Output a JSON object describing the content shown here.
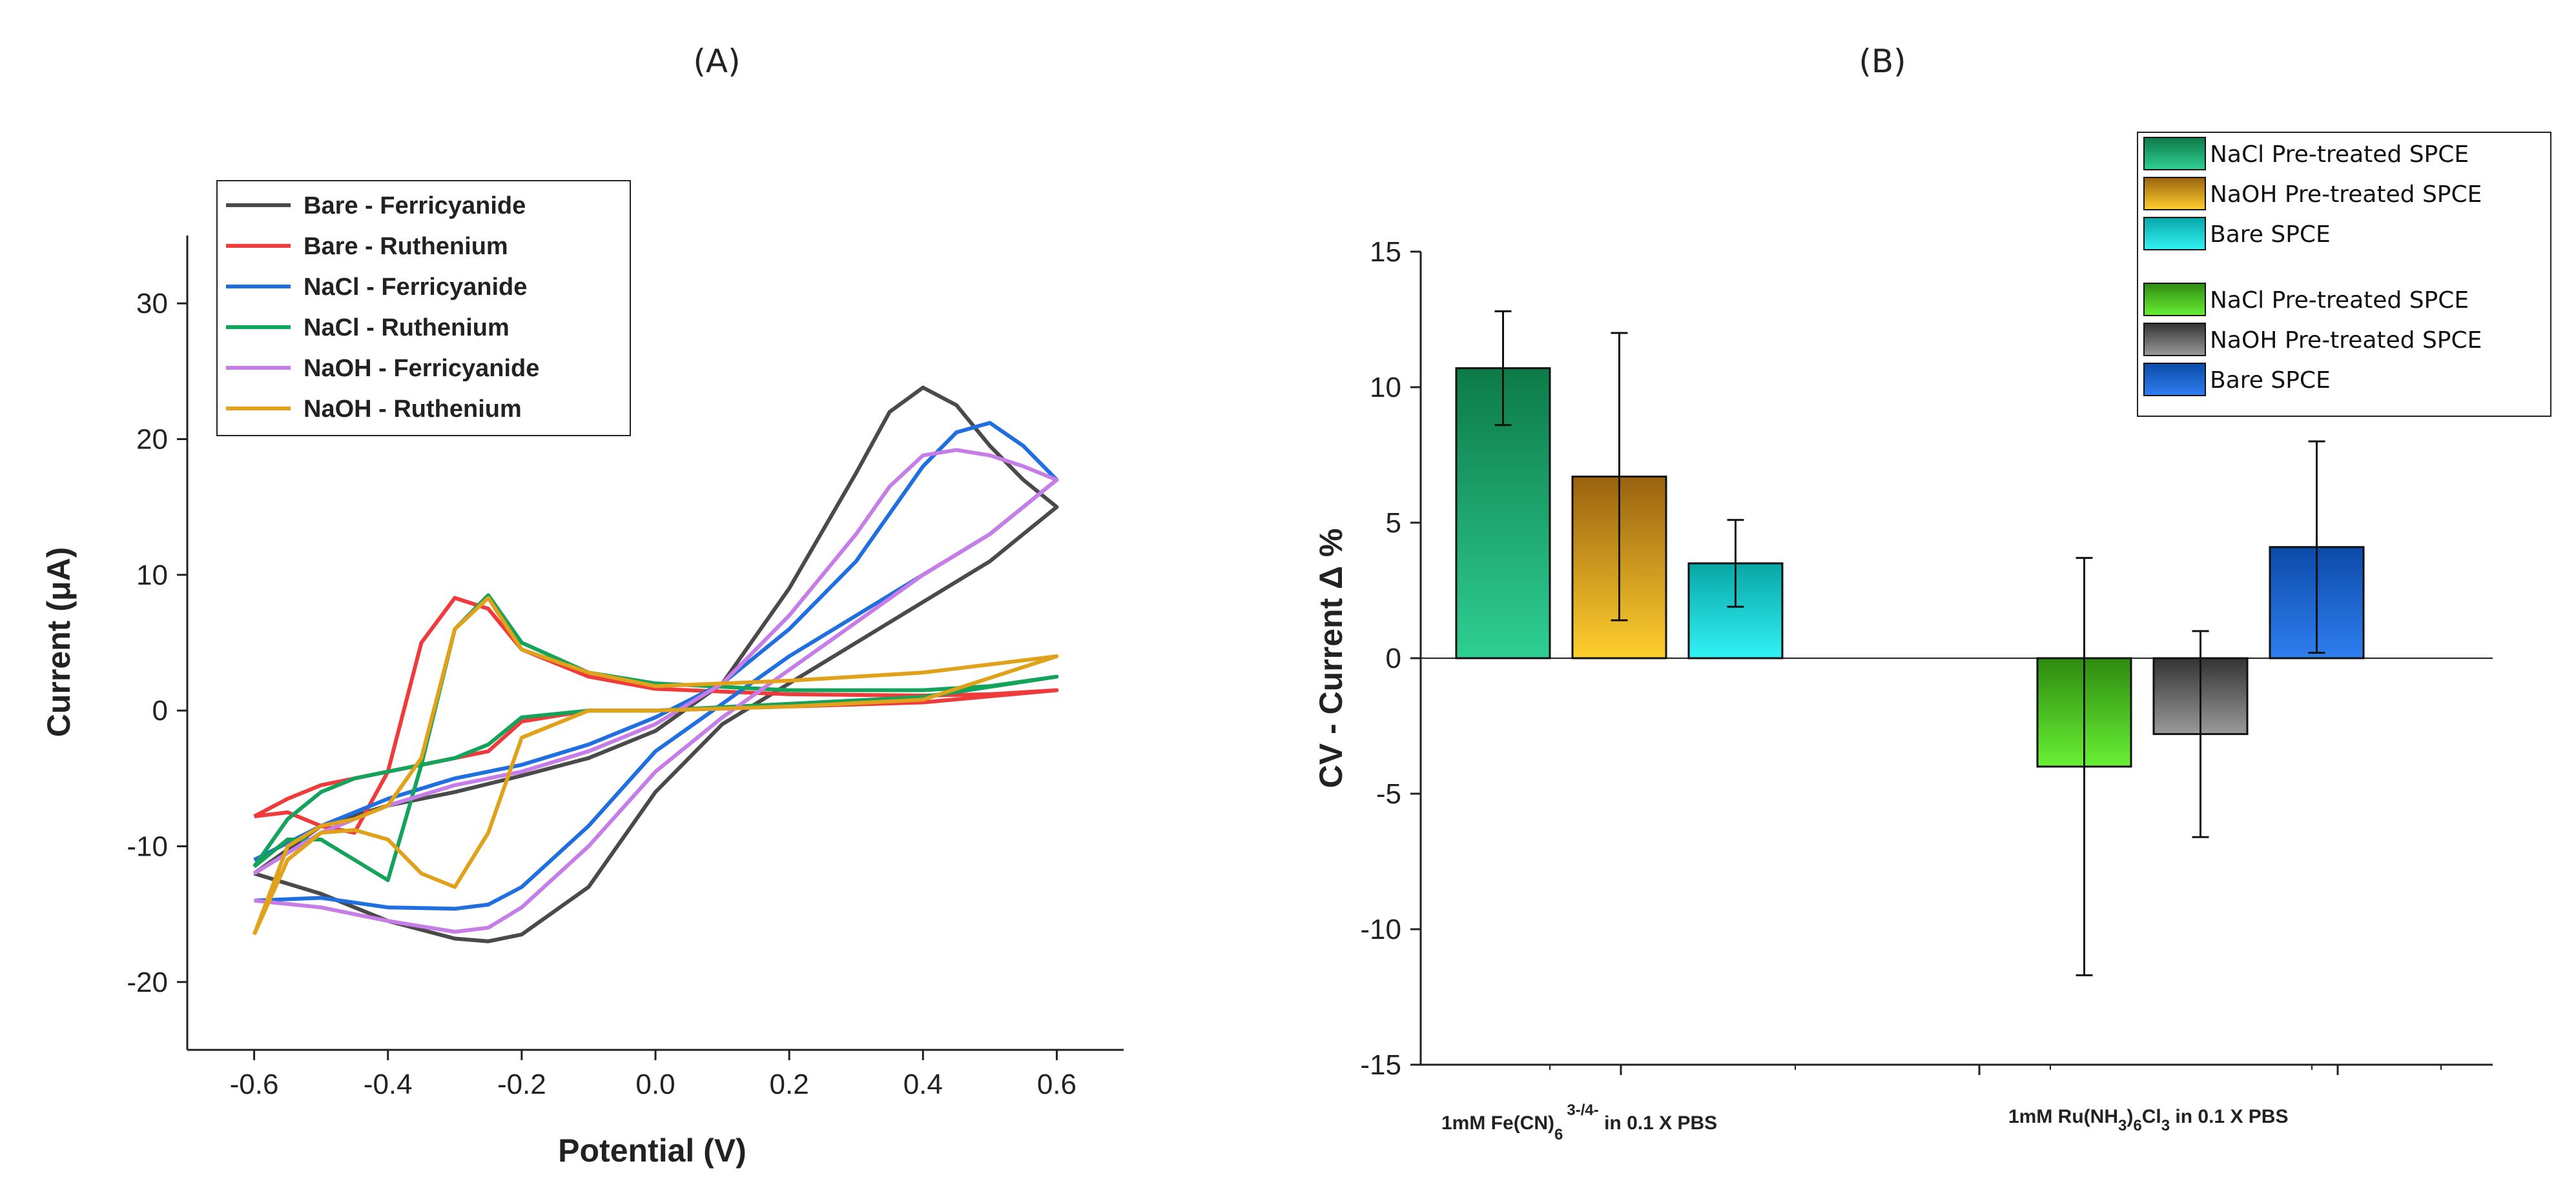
{
  "chart_data": [
    {
      "type": "line",
      "panel_label": "(A)",
      "xlabel": "Potential (V)",
      "ylabel": "Current (μA)",
      "xlim": [
        -0.7,
        0.7
      ],
      "ylim": [
        -25,
        35
      ],
      "xticks": [
        -0.6,
        -0.4,
        -0.2,
        0.0,
        0.2,
        0.4,
        0.6
      ],
      "xtick_labels": [
        "-0.6",
        "-0.4",
        "-0.2",
        "0.0",
        "0.2",
        "0.4",
        "0.6"
      ],
      "yticks": [
        -20,
        -10,
        0,
        10,
        20,
        30
      ],
      "ytick_labels": [
        "-20",
        "-10",
        "0",
        "10",
        "20",
        "30"
      ],
      "legend_position": "top-left",
      "series": [
        {
          "name": "Bare - Ferricyanide",
          "color": "#4a4a4a",
          "x": [
            -0.6,
            -0.5,
            -0.4,
            -0.3,
            -0.2,
            -0.1,
            0.0,
            0.1,
            0.2,
            0.3,
            0.35,
            0.4,
            0.45,
            0.5,
            0.55,
            0.6,
            0.55,
            0.5,
            0.4,
            0.3,
            0.2,
            0.1,
            0.0,
            -0.1,
            -0.2,
            -0.25,
            -0.3,
            -0.4,
            -0.5,
            -0.6
          ],
          "y": [
            -12,
            -8.5,
            -7,
            -6,
            -4.8,
            -3.5,
            -1.5,
            2,
            9,
            17.5,
            22,
            23.8,
            22.5,
            19.5,
            17,
            15,
            13,
            11,
            8,
            5,
            2,
            -1,
            -6,
            -13,
            -16.5,
            -17,
            -16.8,
            -15.5,
            -13.5,
            -12
          ]
        },
        {
          "name": "Bare - Ruthenium",
          "color": "#ef3b3b",
          "x": [
            -0.6,
            -0.55,
            -0.5,
            -0.45,
            -0.4,
            -0.35,
            -0.3,
            -0.25,
            -0.2,
            -0.1,
            0.0,
            0.2,
            0.4,
            0.6,
            0.5,
            0.4,
            0.2,
            0.0,
            -0.1,
            -0.2,
            -0.25,
            -0.3,
            -0.35,
            -0.4,
            -0.45,
            -0.5,
            -0.55,
            -0.6
          ],
          "y": [
            -7.8,
            -6.5,
            -5.5,
            -5,
            -4.5,
            -4,
            -3.5,
            -3,
            -0.8,
            0,
            0,
            0.3,
            0.6,
            1.5,
            1.2,
            1.1,
            1.2,
            1.6,
            2.5,
            4.5,
            7.5,
            8.3,
            5,
            -4.5,
            -9,
            -8.5,
            -7.5,
            -7.8
          ]
        },
        {
          "name": "NaCl - Ferricyanide",
          "color": "#1f6fe0",
          "x": [
            -0.6,
            -0.5,
            -0.4,
            -0.3,
            -0.2,
            -0.1,
            0.0,
            0.1,
            0.2,
            0.3,
            0.35,
            0.4,
            0.45,
            0.5,
            0.55,
            0.6,
            0.55,
            0.5,
            0.4,
            0.3,
            0.2,
            0.1,
            0.0,
            -0.1,
            -0.2,
            -0.25,
            -0.3,
            -0.4,
            -0.5,
            -0.6
          ],
          "y": [
            -11,
            -8.5,
            -6.5,
            -5,
            -4,
            -2.5,
            -0.5,
            2,
            6,
            11,
            14.5,
            18,
            20.5,
            21.2,
            19.5,
            17,
            15,
            13,
            10,
            7,
            4,
            0.5,
            -3,
            -8.5,
            -13,
            -14.3,
            -14.6,
            -14.5,
            -13.8,
            -14
          ]
        },
        {
          "name": "NaCl - Ruthenium",
          "color": "#13a35a",
          "x": [
            -0.6,
            -0.55,
            -0.5,
            -0.45,
            -0.4,
            -0.35,
            -0.3,
            -0.25,
            -0.2,
            -0.1,
            0.0,
            0.2,
            0.4,
            0.6,
            0.5,
            0.4,
            0.2,
            0.0,
            -0.1,
            -0.2,
            -0.25,
            -0.3,
            -0.35,
            -0.4,
            -0.45,
            -0.5,
            -0.55,
            -0.6
          ],
          "y": [
            -11.5,
            -8,
            -6,
            -5,
            -4.5,
            -4,
            -3.5,
            -2.5,
            -0.5,
            0,
            0,
            0.5,
            1,
            2.5,
            1.8,
            1.5,
            1.5,
            2,
            2.8,
            5,
            8.5,
            6,
            -4,
            -12.5,
            -11,
            -9.5,
            -9.5,
            -11.5
          ]
        },
        {
          "name": "NaOH - Ferricyanide",
          "color": "#c77de8",
          "x": [
            -0.6,
            -0.5,
            -0.4,
            -0.3,
            -0.2,
            -0.1,
            0.0,
            0.1,
            0.2,
            0.3,
            0.35,
            0.4,
            0.45,
            0.5,
            0.55,
            0.6,
            0.55,
            0.5,
            0.4,
            0.3,
            0.2,
            0.1,
            0.0,
            -0.1,
            -0.2,
            -0.25,
            -0.3,
            -0.4,
            -0.5,
            -0.6
          ],
          "y": [
            -12,
            -9,
            -7,
            -5.5,
            -4.5,
            -3,
            -1,
            2,
            7,
            13,
            16.5,
            18.8,
            19.2,
            18.8,
            18,
            17,
            15,
            13,
            10,
            6.5,
            3,
            -0.5,
            -4.5,
            -10,
            -14.5,
            -16,
            -16.3,
            -15.5,
            -14.5,
            -14
          ]
        },
        {
          "name": "NaOH - Ruthenium",
          "color": "#e0a21a",
          "x": [
            -0.6,
            -0.55,
            -0.5,
            -0.45,
            -0.4,
            -0.35,
            -0.3,
            -0.25,
            -0.2,
            -0.1,
            0.0,
            0.2,
            0.4,
            0.6,
            0.5,
            0.4,
            0.2,
            0.0,
            -0.1,
            -0.2,
            -0.25,
            -0.3,
            -0.35,
            -0.4,
            -0.45,
            -0.5,
            -0.55,
            -0.6
          ],
          "y": [
            -16.5,
            -11,
            -9,
            -8.8,
            -9.5,
            -12,
            -13,
            -9,
            -2,
            0,
            0,
            0.3,
            0.8,
            4,
            3.4,
            2.8,
            2.2,
            1.8,
            2.8,
            4.5,
            8.3,
            6,
            -3.5,
            -7,
            -8,
            -8.5,
            -10,
            -16.5
          ]
        }
      ]
    },
    {
      "type": "bar",
      "panel_label": "(B)",
      "ylabel": "CV - Current Δ %",
      "ylim": [
        -15,
        15
      ],
      "yticks": [
        -15,
        -10,
        -5,
        0,
        5,
        10,
        15
      ],
      "ytick_labels": [
        "-15",
        "-10",
        "-5",
        "0",
        "5",
        "10",
        "15"
      ],
      "legend_position": "top-right",
      "groups": [
        {
          "category_main": "1mM Fe(CN)",
          "category_sub": "6",
          "category_sup": "3-/4-",
          "category_tail": " in 0.1 X PBS",
          "bars": [
            {
              "name": "NaCl Pre-treated SPCE",
              "value": 10.7,
              "error": 2.1,
              "color_top": "#0d7a48",
              "color_bottom": "#2fcf94"
            },
            {
              "name": "NaOH Pre-treated SPCE",
              "value": 6.7,
              "error": 5.3,
              "color_top": "#9a6210",
              "color_bottom": "#ffcf2e"
            },
            {
              "name": "Bare SPCE",
              "value": 3.5,
              "error": 1.6,
              "color_top": "#08a6a6",
              "color_bottom": "#33f2f5"
            }
          ]
        },
        {
          "category_main": "1mM Ru(NH",
          "category_sub": "3",
          "category_mid": ")",
          "category_sub2": "6",
          "category_mid2": "Cl",
          "category_sub3": "3",
          "category_tail": " in 0.1 X PBS",
          "bars": [
            {
              "name": "NaCl Pre-treated SPCE",
              "value": -4.0,
              "error": 7.7,
              "color_top": "#2d8a10",
              "color_bottom": "#69f035"
            },
            {
              "name": "NaOH Pre-treated SPCE",
              "value": -2.8,
              "error": 3.8,
              "color_top": "#333333",
              "color_bottom": "#9a9a9a"
            },
            {
              "name": "Bare SPCE",
              "value": 4.1,
              "error": 3.9,
              "color_top": "#0b4aa8",
              "color_bottom": "#2f7ff0"
            }
          ]
        }
      ]
    }
  ]
}
